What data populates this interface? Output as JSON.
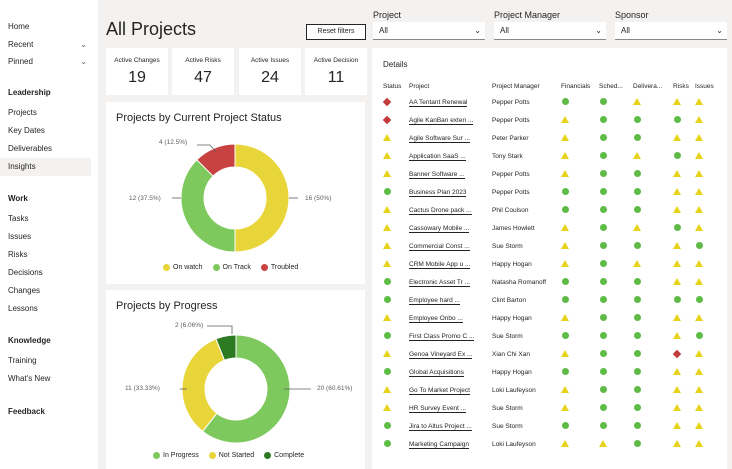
{
  "sidebar": {
    "top_items": [
      {
        "label": "Home",
        "chevron": false
      },
      {
        "label": "Recent",
        "chevron": true
      },
      {
        "label": "Pinned",
        "chevron": true
      }
    ],
    "sections": [
      {
        "title": "Leadership",
        "items": [
          "Projects",
          "Key Dates",
          "Deliverables",
          "Insights"
        ]
      },
      {
        "title": "Work",
        "items": [
          "Tasks",
          "Issues",
          "Risks",
          "Decisions",
          "Changes",
          "Lessons"
        ]
      },
      {
        "title": "Knowledge",
        "items": [
          "Training",
          "What's New"
        ]
      },
      {
        "title": "Feedback",
        "items": []
      }
    ],
    "active_item": "Insights",
    "chevron_glyph": "⌄"
  },
  "header": {
    "title": "All Projects",
    "reset_label": "Reset filters"
  },
  "filters": [
    {
      "label": "Project",
      "value": "All"
    },
    {
      "label": "Project Manager",
      "value": "All"
    },
    {
      "label": "Sponsor",
      "value": "All"
    }
  ],
  "kpis": [
    {
      "label": "Active Changes",
      "value": "19"
    },
    {
      "label": "Active Risks",
      "value": "47"
    },
    {
      "label": "Active Issues",
      "value": "24"
    },
    {
      "label": "Active Decision",
      "value": "11"
    }
  ],
  "status_chart": {
    "title": "Projects by Current Project Status",
    "labels": [
      "4 (12.5%)",
      "12 (37.5%)",
      "16 (50%)"
    ],
    "legend": [
      "On watch",
      "On Track",
      "Troubled"
    ]
  },
  "progress_chart": {
    "title": "Projects by Progress",
    "labels": [
      "2 (6.06%)",
      "11 (33.33%)",
      "20 (60.61%)"
    ],
    "legend": [
      "In Progress",
      "Not Started",
      "Complete"
    ]
  },
  "chart_data": [
    {
      "type": "pie",
      "title": "Projects by Current Project Status",
      "categories": [
        "On watch",
        "On Track",
        "Troubled"
      ],
      "values": [
        16,
        12,
        4
      ],
      "colors": [
        "#e8d53a",
        "#7dc95e",
        "#c94242"
      ],
      "legend": "bottom"
    },
    {
      "type": "pie",
      "title": "Projects by Progress",
      "categories": [
        "In Progress",
        "Not Started",
        "Complete"
      ],
      "values": [
        20,
        11,
        2
      ],
      "colors": [
        "#7dc95e",
        "#e8d53a",
        "#2c7a22"
      ],
      "legend": "bottom"
    }
  ],
  "details": {
    "title": "Details",
    "columns": [
      "Status",
      "Project",
      "Project Manager",
      "Financials",
      "Sched...",
      "Delivera...",
      "Risks",
      "Issues"
    ],
    "rows": [
      {
        "status": "red",
        "project": "AA Tentant Renewal",
        "pm": "Pepper Potts",
        "fin": "green",
        "sch": "green",
        "del": "yellow",
        "risk": "yellow",
        "iss": "yellow"
      },
      {
        "status": "red",
        "project": "Agile KanBan exten ...",
        "pm": "Pepper Potts",
        "fin": "yellow",
        "sch": "green",
        "del": "green",
        "risk": "green",
        "iss": "yellow"
      },
      {
        "status": "yellow",
        "project": "Agile Software Sur ...",
        "pm": "Peter Parker",
        "fin": "yellow",
        "sch": "green",
        "del": "green",
        "risk": "yellow",
        "iss": "yellow"
      },
      {
        "status": "yellow",
        "project": "Application SaaS ...",
        "pm": "Tony Stark",
        "fin": "yellow",
        "sch": "green",
        "del": "yellow",
        "risk": "green",
        "iss": "yellow"
      },
      {
        "status": "yellow",
        "project": "Banner Software ...",
        "pm": "Pepper Potts",
        "fin": "yellow",
        "sch": "green",
        "del": "green",
        "risk": "yellow",
        "iss": "yellow"
      },
      {
        "status": "green",
        "project": "Business Plan 2023",
        "pm": "Pepper Potts",
        "fin": "green",
        "sch": "green",
        "del": "green",
        "risk": "yellow",
        "iss": "yellow"
      },
      {
        "status": "yellow",
        "project": "Cactus Drone pack ...",
        "pm": "Phil Coulson",
        "fin": "green",
        "sch": "green",
        "del": "green",
        "risk": "yellow",
        "iss": "yellow"
      },
      {
        "status": "yellow",
        "project": "Cassowary Mobile ...",
        "pm": "James Howlett",
        "fin": "yellow",
        "sch": "green",
        "del": "yellow",
        "risk": "green",
        "iss": "yellow"
      },
      {
        "status": "yellow",
        "project": "Commercial Const ...",
        "pm": "Sue Storm",
        "fin": "yellow",
        "sch": "green",
        "del": "green",
        "risk": "yellow",
        "iss": "green"
      },
      {
        "status": "yellow",
        "project": "CRM Mobile App u ...",
        "pm": "Happy Hogan",
        "fin": "yellow",
        "sch": "green",
        "del": "yellow",
        "risk": "yellow",
        "iss": "yellow"
      },
      {
        "status": "green",
        "project": "Electronic Asset Tr ...",
        "pm": "Natasha Romanoff",
        "fin": "green",
        "sch": "green",
        "del": "green",
        "risk": "yellow",
        "iss": "yellow"
      },
      {
        "status": "green",
        "project": "Employee hard ...",
        "pm": "Clint Barton",
        "fin": "green",
        "sch": "green",
        "del": "green",
        "risk": "green",
        "iss": "green"
      },
      {
        "status": "yellow",
        "project": "Employee Onbo ...",
        "pm": "Happy Hogan",
        "fin": "yellow",
        "sch": "green",
        "del": "green",
        "risk": "yellow",
        "iss": "yellow"
      },
      {
        "status": "green",
        "project": "First Class Promo C ...",
        "pm": "Sue Storm",
        "fin": "green",
        "sch": "green",
        "del": "green",
        "risk": "yellow",
        "iss": "green"
      },
      {
        "status": "yellow",
        "project": "Genoa Vineyard Ex ...",
        "pm": "Xian Chi Xan",
        "fin": "yellow",
        "sch": "green",
        "del": "green",
        "risk": "red",
        "iss": "yellow"
      },
      {
        "status": "green",
        "project": "Global Acquisitions",
        "pm": "Happy Hogan",
        "fin": "green",
        "sch": "green",
        "del": "green",
        "risk": "yellow",
        "iss": "yellow"
      },
      {
        "status": "yellow",
        "project": "Go To Market Project",
        "pm": "Loki Laufeyson",
        "fin": "yellow",
        "sch": "green",
        "del": "green",
        "risk": "yellow",
        "iss": "yellow"
      },
      {
        "status": "yellow",
        "project": "HR Survey Event ...",
        "pm": "Sue Storm",
        "fin": "yellow",
        "sch": "green",
        "del": "green",
        "risk": "yellow",
        "iss": "yellow"
      },
      {
        "status": "green",
        "project": "Jira to Altus Project ...",
        "pm": "Sue Storm",
        "fin": "green",
        "sch": "green",
        "del": "green",
        "risk": "yellow",
        "iss": "yellow"
      },
      {
        "status": "green",
        "project": "Marketing Campaign",
        "pm": "Loki Laufeyson",
        "fin": "yellow",
        "sch": "yellow",
        "del": "green",
        "risk": "yellow",
        "iss": "yellow"
      }
    ]
  }
}
